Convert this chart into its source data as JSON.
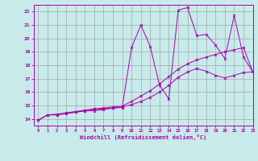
{
  "bg_color": "#c8eaea",
  "grid_color": "#999999",
  "line_color": "#aa00aa",
  "xlabel": "Windchill (Refroidissement éolien,°C)",
  "xlim": [
    -0.5,
    23
  ],
  "ylim": [
    13.5,
    22.5
  ],
  "yticks": [
    14,
    15,
    16,
    17,
    18,
    19,
    20,
    21,
    22
  ],
  "xticks": [
    0,
    1,
    2,
    3,
    4,
    5,
    6,
    7,
    8,
    9,
    10,
    11,
    12,
    13,
    14,
    15,
    16,
    17,
    18,
    19,
    20,
    21,
    22,
    23
  ],
  "line1_x": [
    0,
    1,
    2,
    3,
    4,
    5,
    6,
    7,
    8,
    9,
    10,
    11,
    12,
    13,
    14,
    15,
    16,
    17,
    18,
    19,
    20,
    21,
    22,
    23
  ],
  "line1_y": [
    13.9,
    14.3,
    14.3,
    14.4,
    14.5,
    14.6,
    14.7,
    14.75,
    14.8,
    14.9,
    15.05,
    15.3,
    15.6,
    16.0,
    16.5,
    17.1,
    17.5,
    17.75,
    17.55,
    17.25,
    17.05,
    17.25,
    17.45,
    17.5
  ],
  "line2_x": [
    0,
    1,
    2,
    3,
    4,
    5,
    6,
    7,
    8,
    9,
    10,
    11,
    12,
    13,
    14,
    15,
    16,
    17,
    18,
    19,
    20,
    21,
    22,
    23
  ],
  "line2_y": [
    13.9,
    14.3,
    14.3,
    14.4,
    14.5,
    14.6,
    14.6,
    14.7,
    14.8,
    14.85,
    19.3,
    21.0,
    19.4,
    16.5,
    15.5,
    22.1,
    22.3,
    20.2,
    20.3,
    19.5,
    18.5,
    21.7,
    18.6,
    17.5
  ],
  "line3_x": [
    0,
    1,
    2,
    3,
    4,
    5,
    6,
    7,
    8,
    9,
    10,
    11,
    12,
    13,
    14,
    15,
    16,
    17,
    18,
    19,
    20,
    21,
    22,
    23
  ],
  "line3_y": [
    13.9,
    14.3,
    14.35,
    14.45,
    14.55,
    14.65,
    14.75,
    14.8,
    14.9,
    14.95,
    15.3,
    15.7,
    16.1,
    16.6,
    17.15,
    17.7,
    18.1,
    18.4,
    18.6,
    18.8,
    19.0,
    19.15,
    19.3,
    17.5
  ]
}
